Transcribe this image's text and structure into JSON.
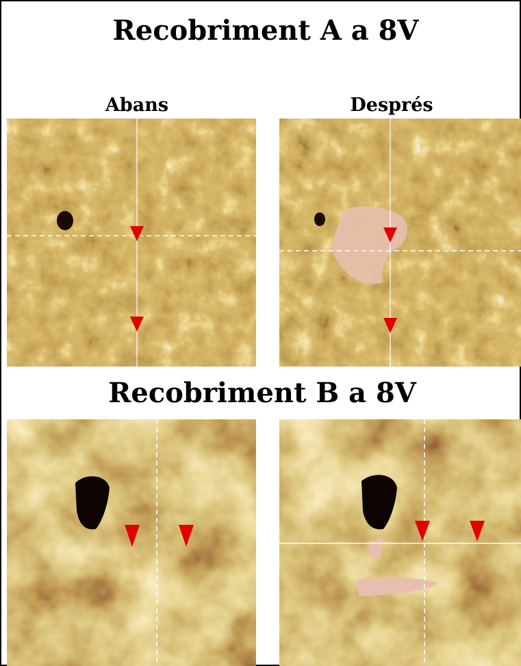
{
  "title_a": "Recobriment A a 8V",
  "labels": [
    "Abans",
    "Després"
  ],
  "title_b": "Recobriment B a 8V"
}
